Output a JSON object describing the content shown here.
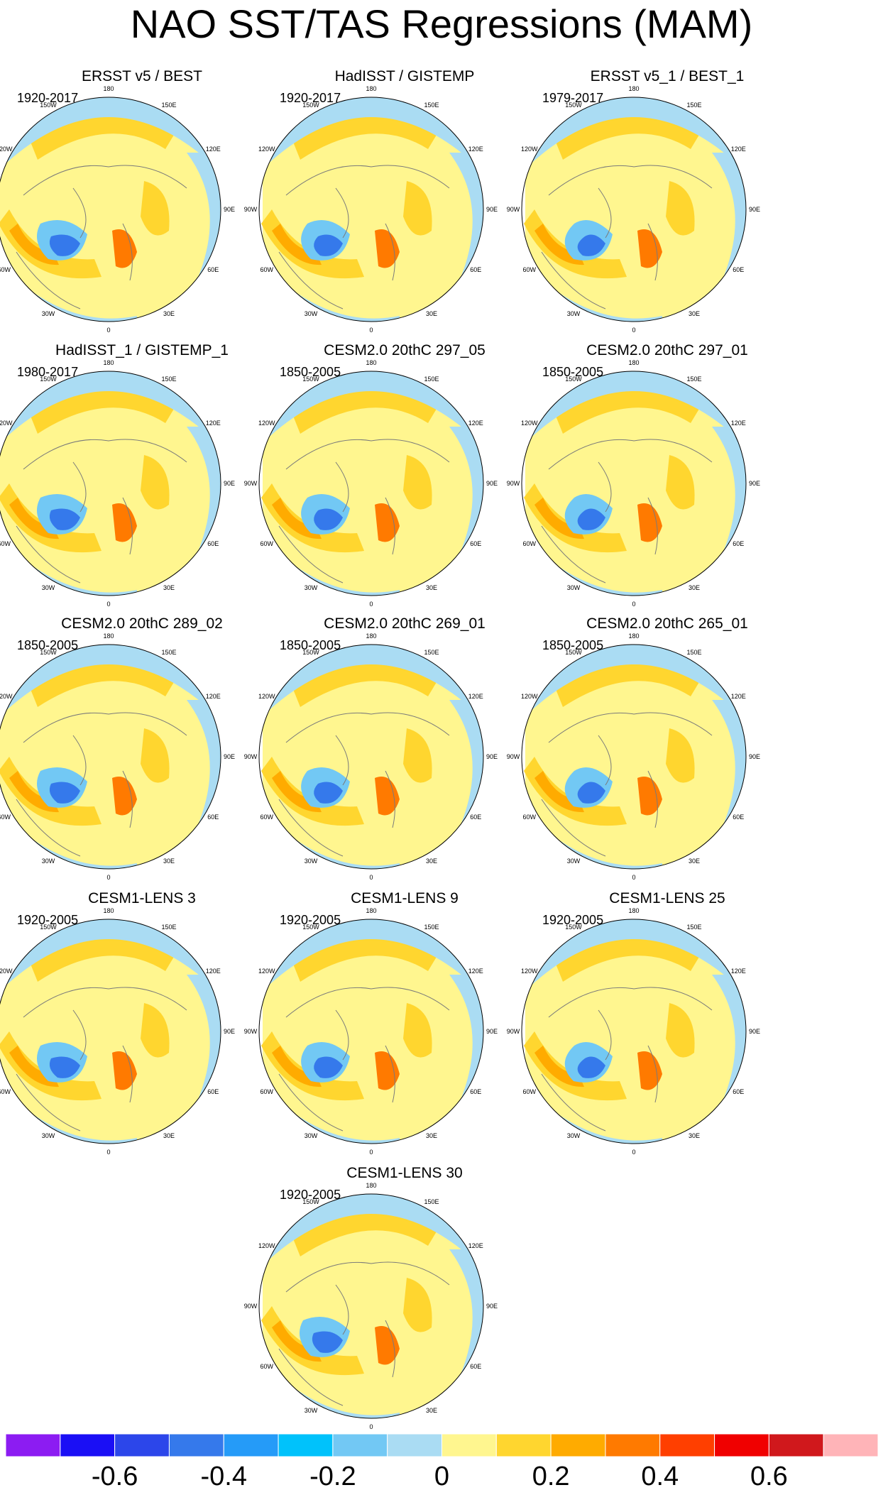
{
  "title": "NAO SST/TAS Regressions (MAM)",
  "panels": [
    {
      "title": "ERSST v5 / BEST",
      "period": "1920-2017"
    },
    {
      "title": "HadISST / GISTEMP",
      "period": "1920-2017"
    },
    {
      "title": "ERSST v5_1 / BEST_1",
      "period": "1979-2017"
    },
    {
      "title": "HadISST_1 / GISTEMP_1",
      "period": "1980-2017"
    },
    {
      "title": "CESM2.0 20thC 297_05",
      "period": "1850-2005"
    },
    {
      "title": "CESM2.0 20thC 297_01",
      "period": "1850-2005"
    },
    {
      "title": "CESM2.0 20thC 289_02",
      "period": "1850-2005"
    },
    {
      "title": "CESM2.0 20thC 269_01",
      "period": "1850-2005"
    },
    {
      "title": "CESM2.0 20thC 265_01",
      "period": "1850-2005"
    },
    {
      "title": "CESM1-LENS 3",
      "period": "1920-2005"
    },
    {
      "title": "CESM1-LENS 9",
      "period": "1920-2005"
    },
    {
      "title": "CESM1-LENS 25",
      "period": "1920-2005"
    },
    {
      "title": "CESM1-LENS 30",
      "period": "1920-2005"
    }
  ],
  "longitude_labels": [
    "180",
    "150E",
    "120E",
    "90E",
    "60E",
    "30E",
    "0",
    "30W",
    "60W",
    "90W",
    "120W",
    "150W"
  ],
  "colorbar": {
    "colors": [
      "#8c1cf2",
      "#1a0ff5",
      "#2c46ea",
      "#3579eb",
      "#259bf8",
      "#00c2fb",
      "#72c8f4",
      "#aadcf3",
      "#fff68f",
      "#ffd62f",
      "#ffab00",
      "#ff7a00",
      "#ff3f00",
      "#f00000",
      "#d0181c",
      "#ffb4b8"
    ],
    "ticks": [
      "-0.6",
      "-0.4",
      "-0.2",
      "0",
      "0.2",
      "0.4",
      "0.6"
    ]
  }
}
